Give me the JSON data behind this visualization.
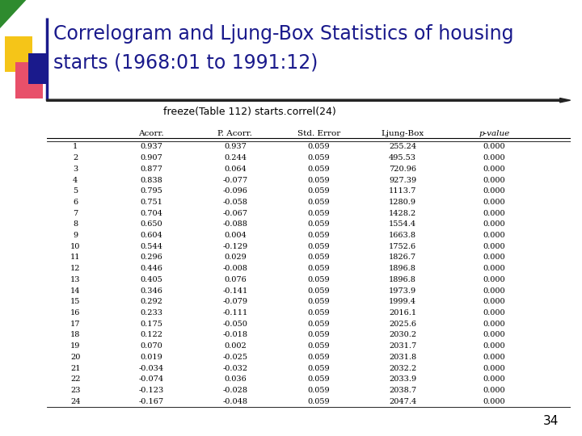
{
  "title_line1": "Correlogram and Ljung-Box Statistics of housing",
  "title_line2": "starts (1968:01 to 1991:12)",
  "subtitle": "freeze(Table 112) starts.correl(24)",
  "title_color": "#1a1a8c",
  "title_fontsize": 17,
  "subtitle_fontsize": 9,
  "col_headers": [
    "",
    "Acorr.",
    "P. Acorr.",
    "Std. Error",
    "Ljung-Box",
    "p-value"
  ],
  "rows": [
    [
      1,
      0.937,
      0.937,
      0.059,
      255.24,
      0.0
    ],
    [
      2,
      0.907,
      0.244,
      0.059,
      495.53,
      0.0
    ],
    [
      3,
      0.877,
      0.064,
      0.059,
      720.96,
      0.0
    ],
    [
      4,
      0.838,
      -0.077,
      0.059,
      927.39,
      0.0
    ],
    [
      5,
      0.795,
      -0.096,
      0.059,
      1113.7,
      0.0
    ],
    [
      6,
      0.751,
      -0.058,
      0.059,
      1280.9,
      0.0
    ],
    [
      7,
      0.704,
      -0.067,
      0.059,
      1428.2,
      0.0
    ],
    [
      8,
      0.65,
      -0.088,
      0.059,
      1554.4,
      0.0
    ],
    [
      9,
      0.604,
      0.004,
      0.059,
      1663.8,
      0.0
    ],
    [
      10,
      0.544,
      -0.129,
      0.059,
      1752.6,
      0.0
    ],
    [
      11,
      0.296,
      0.029,
      0.059,
      1826.7,
      0.0
    ],
    [
      12,
      0.446,
      -0.008,
      0.059,
      1896.8,
      0.0
    ],
    [
      13,
      0.405,
      0.076,
      0.059,
      1896.8,
      0.0
    ],
    [
      14,
      0.346,
      -0.141,
      0.059,
      1973.9,
      0.0
    ],
    [
      15,
      0.292,
      -0.079,
      0.059,
      1999.4,
      0.0
    ],
    [
      16,
      0.233,
      -0.111,
      0.059,
      2016.1,
      0.0
    ],
    [
      17,
      0.175,
      -0.05,
      0.059,
      2025.6,
      0.0
    ],
    [
      18,
      0.122,
      -0.018,
      0.059,
      2030.2,
      0.0
    ],
    [
      19,
      0.07,
      0.002,
      0.059,
      2031.7,
      0.0
    ],
    [
      20,
      0.019,
      -0.025,
      0.059,
      2031.8,
      0.0
    ],
    [
      21,
      -0.034,
      -0.032,
      0.059,
      2032.2,
      0.0
    ],
    [
      22,
      -0.074,
      0.036,
      0.059,
      2033.9,
      0.0
    ],
    [
      23,
      -0.123,
      -0.028,
      0.059,
      2038.7,
      0.0
    ],
    [
      24,
      -0.167,
      -0.048,
      0.059,
      2047.4,
      0.0
    ]
  ],
  "background_color": "#ffffff",
  "page_number": "34"
}
